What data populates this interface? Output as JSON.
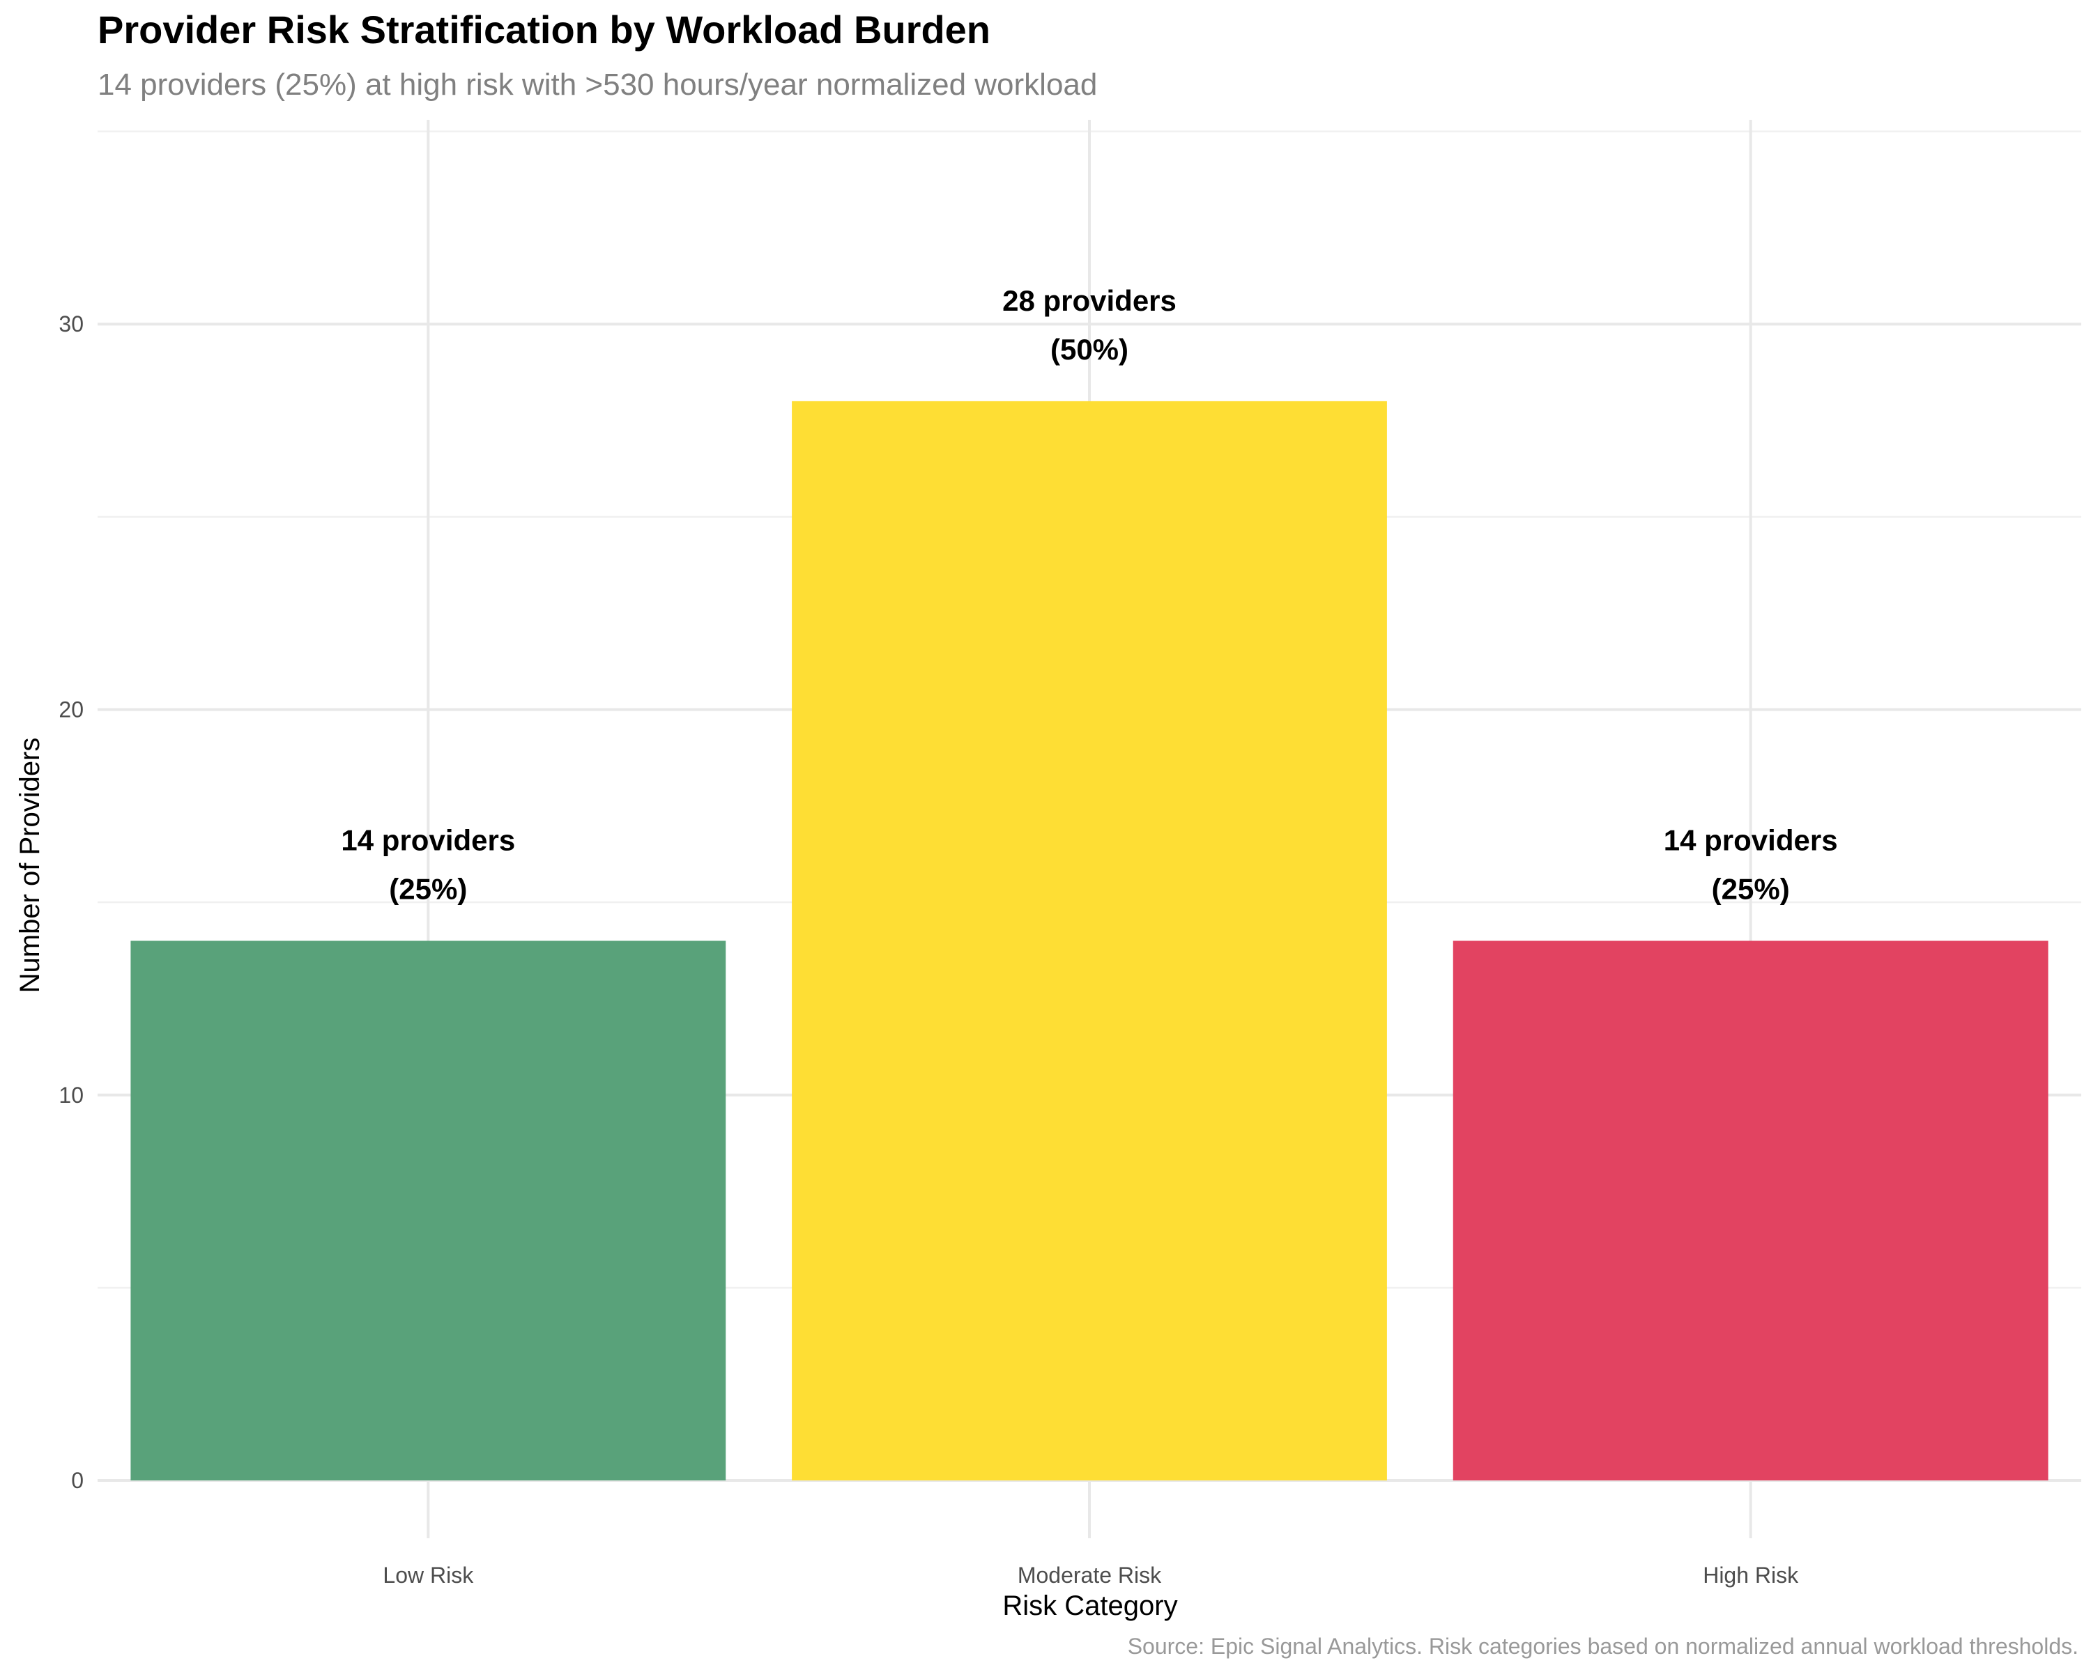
{
  "chart_data": {
    "type": "bar",
    "title": "Provider Risk Stratification by Workload Burden",
    "subtitle": "14 providers (25%) at high risk with >530 hours/year normalized workload",
    "xlabel": "Risk Category",
    "ylabel": "Number of Providers",
    "caption": "Source: Epic Signal Analytics. Risk categories based on normalized annual workload thresholds.",
    "categories": [
      "Low Risk",
      "Moderate Risk",
      "High Risk"
    ],
    "values": [
      14,
      28,
      14
    ],
    "data_labels": [
      [
        "14 providers",
        "(25%)"
      ],
      [
        "28 providers",
        "(50%)"
      ],
      [
        "14 providers",
        "(25%)"
      ]
    ],
    "colors": [
      "#59A27A",
      "#FEDE34",
      "#E24361"
    ],
    "ylim": [
      -1.5,
      35.3
    ],
    "y_ticks": [
      0,
      10,
      20,
      30
    ],
    "grid": true,
    "legend": "none"
  }
}
